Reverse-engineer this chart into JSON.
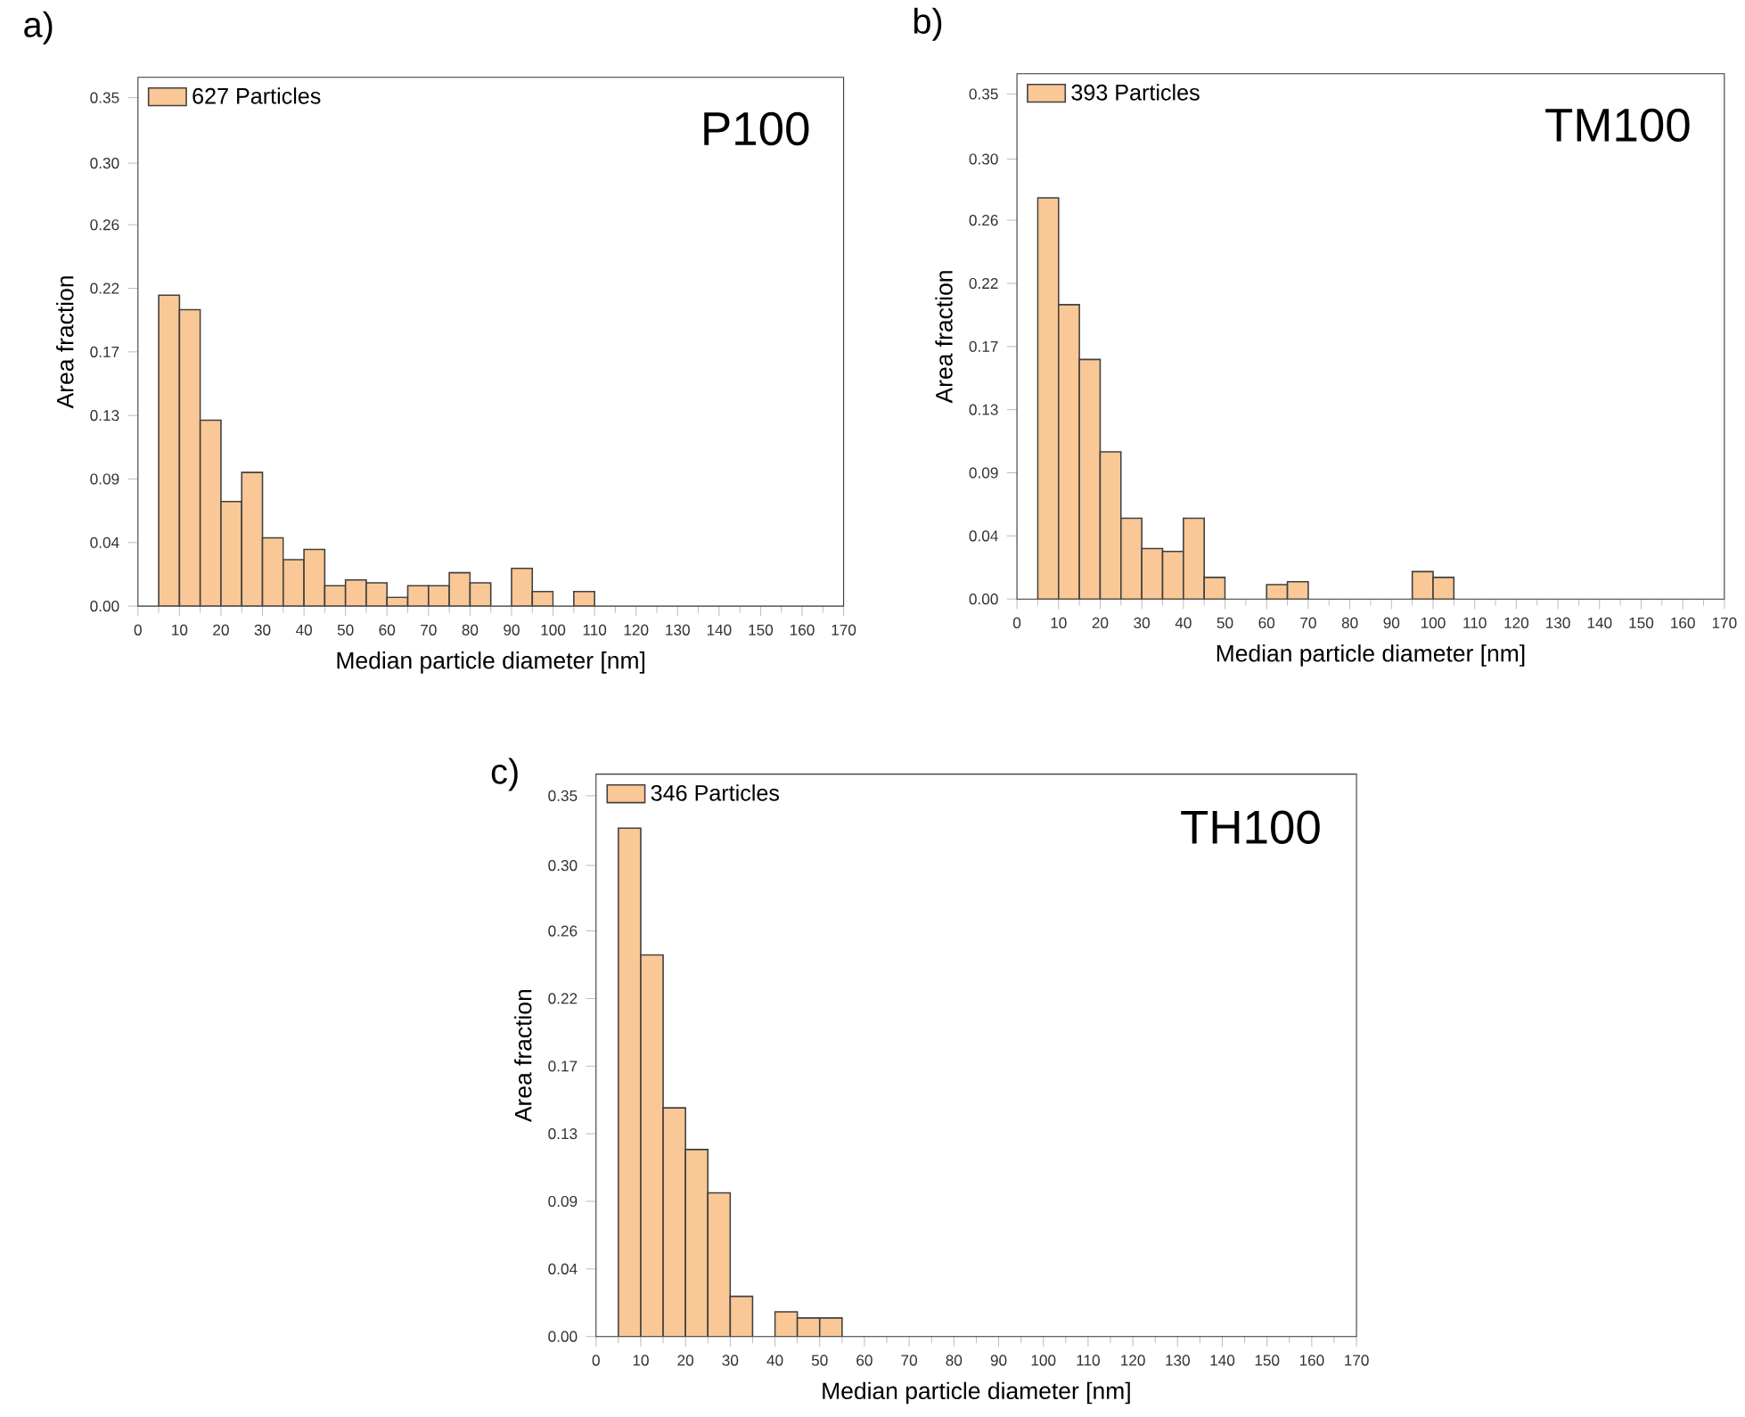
{
  "chart_data": [
    {
      "type": "histogram",
      "title": "a)",
      "xlabel": "Median particle diameter [nm]",
      "ylabel": "Area fraction",
      "annotations": [
        "P100"
      ],
      "legend": "top left",
      "grid": false,
      "bins": [
        5,
        10,
        15,
        20,
        25,
        30,
        35,
        40,
        45,
        50,
        55,
        60,
        65,
        70,
        75,
        80,
        85,
        90,
        95,
        100,
        105,
        110
      ],
      "series": [
        {
          "name": "627 Particles",
          "color": "#f9c896",
          "values": [
            0.214,
            0.204,
            0.128,
            0.072,
            0.092,
            0.047,
            0.032,
            0.039,
            0.014,
            0.018,
            0.016,
            0.006,
            0.014,
            0.014,
            0.023,
            0.016,
            null,
            0.026,
            0.01,
            null,
            0.01
          ]
        }
      ],
      "xlim": [
        0,
        170
      ],
      "xticks": [
        0,
        10,
        20,
        30,
        40,
        50,
        60,
        70,
        80,
        90,
        100,
        110,
        120,
        130,
        140,
        150,
        160,
        170
      ],
      "ylim": [
        0,
        0.364
      ],
      "yticks": [
        {
          "value": 0,
          "label": "0.00"
        },
        {
          "value": 0.04375,
          "label": "0.04"
        },
        {
          "value": 0.0875,
          "label": "0.09"
        },
        {
          "value": 0.13125,
          "label": "0.13"
        },
        {
          "value": 0.175,
          "label": "0.17"
        },
        {
          "value": 0.21875,
          "label": "0.22"
        },
        {
          "value": 0.2625,
          "label": "0.26"
        },
        {
          "value": 0.3049,
          "label": "0.30"
        },
        {
          "value": 0.35,
          "label": "0.35"
        }
      ]
    },
    {
      "type": "histogram",
      "title": "b)",
      "xlabel": "Median particle diameter [nm]",
      "ylabel": "Area fraction",
      "annotations": [
        "TM100"
      ],
      "legend": "top left",
      "grid": false,
      "bins": [
        5,
        10,
        15,
        20,
        25,
        30,
        35,
        40,
        45,
        50,
        55,
        60,
        65,
        70,
        75,
        80,
        85,
        90,
        95,
        100,
        105
      ],
      "series": [
        {
          "name": "393 Particles",
          "color": "#f9c896",
          "values": [
            0.278,
            0.204,
            0.166,
            0.102,
            0.056,
            0.035,
            0.033,
            0.056,
            0.015,
            null,
            null,
            0.01,
            0.012,
            null,
            null,
            null,
            null,
            null,
            0.019,
            0.015
          ]
        }
      ],
      "xlim": [
        0,
        170
      ],
      "xticks": [
        0,
        10,
        20,
        30,
        40,
        50,
        60,
        70,
        80,
        90,
        100,
        110,
        120,
        130,
        140,
        150,
        160,
        170
      ],
      "ylim": [
        0,
        0.364
      ],
      "yticks": [
        {
          "value": 0,
          "label": "0.00"
        },
        {
          "value": 0.04375,
          "label": "0.04"
        },
        {
          "value": 0.0875,
          "label": "0.09"
        },
        {
          "value": 0.13125,
          "label": "0.13"
        },
        {
          "value": 0.175,
          "label": "0.17"
        },
        {
          "value": 0.21875,
          "label": "0.22"
        },
        {
          "value": 0.2625,
          "label": "0.26"
        },
        {
          "value": 0.3049,
          "label": "0.30"
        },
        {
          "value": 0.35,
          "label": "0.35"
        }
      ]
    },
    {
      "type": "histogram",
      "title": "c)",
      "xlabel": "Median particle diameter [nm]",
      "ylabel": "Area fraction",
      "annotations": [
        "TH100"
      ],
      "legend": "top left",
      "grid": false,
      "bins": [
        5,
        10,
        15,
        20,
        25,
        30,
        35,
        40,
        45,
        50,
        55
      ],
      "series": [
        {
          "name": "346 Particles",
          "color": "#f9c896",
          "values": [
            0.329,
            0.247,
            0.148,
            0.121,
            0.093,
            0.026,
            null,
            0.016,
            0.012,
            0.012
          ]
        }
      ],
      "xlim": [
        0,
        170
      ],
      "xticks": [
        0,
        10,
        20,
        30,
        40,
        50,
        60,
        70,
        80,
        90,
        100,
        110,
        120,
        130,
        140,
        150,
        160,
        170
      ],
      "ylim": [
        0,
        0.364
      ],
      "yticks": [
        {
          "value": 0,
          "label": "0.00"
        },
        {
          "value": 0.04375,
          "label": "0.04"
        },
        {
          "value": 0.0875,
          "label": "0.09"
        },
        {
          "value": 0.13125,
          "label": "0.13"
        },
        {
          "value": 0.175,
          "label": "0.17"
        },
        {
          "value": 0.21875,
          "label": "0.22"
        },
        {
          "value": 0.2625,
          "label": "0.26"
        },
        {
          "value": 0.3049,
          "label": "0.30"
        },
        {
          "value": 0.35,
          "label": "0.35"
        }
      ]
    }
  ]
}
